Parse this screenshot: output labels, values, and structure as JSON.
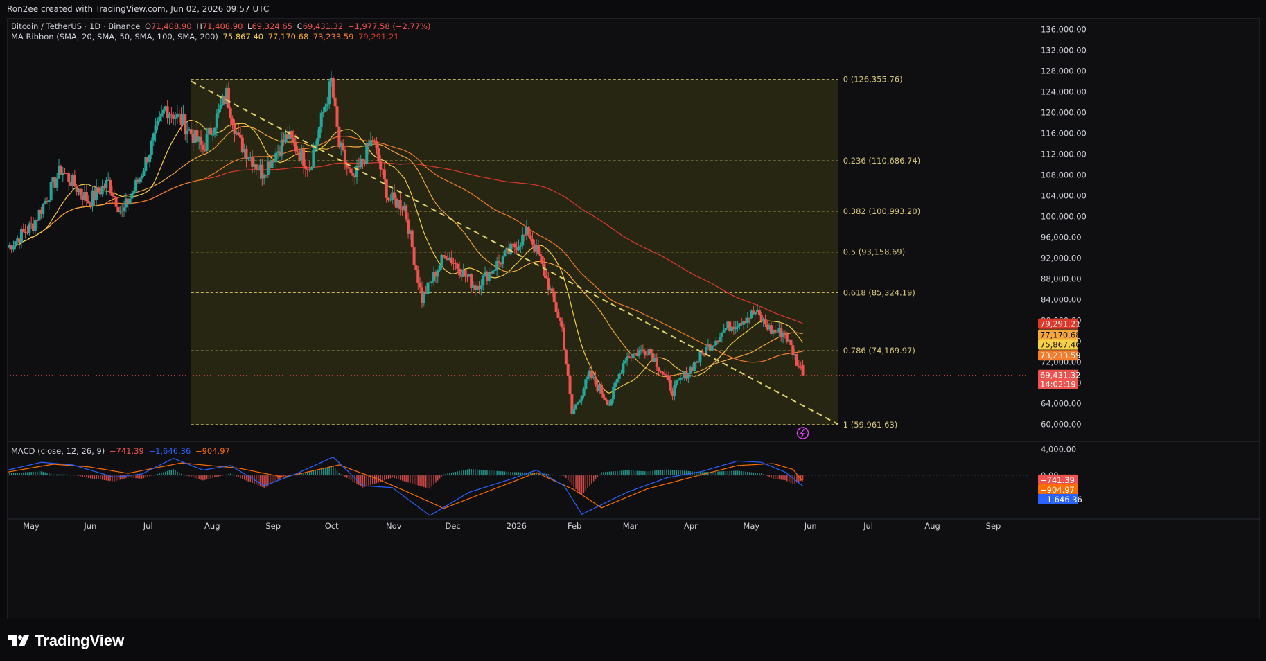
{
  "header": {
    "text": "Ron2ee created with TradingView.com, Jun 02, 2026 09:57 UTC"
  },
  "legend": {
    "symbol": "Bitcoin / TetherUS · 1D · Binance",
    "o_label": "O",
    "o_value": "71,408.90",
    "h_label": "H",
    "h_value": "71,408.90",
    "l_label": "L",
    "l_value": "69,324.65",
    "c_label": "C",
    "c_value": "69,431.32",
    "change": "−1,977.58 (−2.77%)",
    "ma_title": "MA Ribbon (SMA, 20, SMA, 50, SMA, 100, SMA, 200)",
    "ma_values": [
      "75,867.40",
      "77,170.68",
      "73,233.59",
      "79,291.21"
    ],
    "macd_title": "MACD (close, 12, 26, 9)",
    "macd_values": [
      "−741.39",
      "−1,646.36",
      "−904.97"
    ]
  },
  "brand": {
    "name": "TradingView",
    "icon": "tradingview-logo-icon"
  },
  "colors": {
    "up": "#26a69a",
    "down": "#ef5350",
    "fib": "#e2d66a",
    "fib_fill": "#2a2a14",
    "sma20": "#f7d046",
    "sma50": "#f6a73c",
    "sma100": "#f57c2c",
    "sma200": "#e0392c",
    "macd": "#2962ff",
    "signal": "#ff6d00"
  },
  "chart_data": {
    "type": "candlestick",
    "symbol": "BTCUSDT",
    "interval": "1D",
    "exchange": "Binance",
    "y_axis": {
      "ylim": [
        57000,
        137500
      ],
      "ticks": [
        "136,000.00",
        "132,000.00",
        "128,000.00",
        "124,000.00",
        "120,000.00",
        "116,000.00",
        "112,000.00",
        "108,000.00",
        "104,000.00",
        "100,000.00",
        "96,000.00",
        "92,000.00",
        "88,000.00",
        "84,000.00",
        "80,000.00",
        "76,000.00",
        "72,000.00",
        "68,000.00",
        "64,000.00",
        "60,000.00"
      ]
    },
    "x_axis": {
      "labels": [
        "May",
        "Jun",
        "Jul",
        "Aug",
        "Sep",
        "Oct",
        "Nov",
        "Dec",
        "2026",
        "Feb",
        "Mar",
        "Apr",
        "May",
        "Jun",
        "Jul",
        "Aug",
        "Sep"
      ],
      "label_dates": [
        "2025-05-01",
        "2025-06-01",
        "2025-07-01",
        "2025-08-01",
        "2025-09-01",
        "2025-10-01",
        "2025-11-01",
        "2025-12-01",
        "2026-01-01",
        "2026-02-01",
        "2026-03-01",
        "2026-04-01",
        "2026-05-01",
        "2026-06-01",
        "2026-07-01",
        "2026-08-01",
        "2026-09-01"
      ],
      "range": [
        "2025-04-25",
        "2026-09-25"
      ]
    },
    "price_path": [
      [
        "2025-04-25",
        94000
      ],
      [
        "2025-05-08",
        98500
      ],
      [
        "2025-05-22",
        109000
      ],
      [
        "2025-06-05",
        103000
      ],
      [
        "2025-06-15",
        106500
      ],
      [
        "2025-06-22",
        100500
      ],
      [
        "2025-07-01",
        107500
      ],
      [
        "2025-07-14",
        121000
      ],
      [
        "2025-07-22",
        118500
      ],
      [
        "2025-08-02",
        113000
      ],
      [
        "2025-08-14",
        123500
      ],
      [
        "2025-08-20",
        114500
      ],
      [
        "2025-09-01",
        108500
      ],
      [
        "2025-09-14",
        115500
      ],
      [
        "2025-09-25",
        109500
      ],
      [
        "2025-10-06",
        126000
      ],
      [
        "2025-10-10",
        113500
      ],
      [
        "2025-10-17",
        106500
      ],
      [
        "2025-10-27",
        115000
      ],
      [
        "2025-11-04",
        103500
      ],
      [
        "2025-11-12",
        102000
      ],
      [
        "2025-11-21",
        84000
      ],
      [
        "2025-12-03",
        93000
      ],
      [
        "2025-12-18",
        86500
      ],
      [
        "2026-01-05",
        93500
      ],
      [
        "2026-01-14",
        97000
      ],
      [
        "2026-01-20",
        91500
      ],
      [
        "2026-01-31",
        78500
      ],
      [
        "2026-02-05",
        62000
      ],
      [
        "2026-02-14",
        69500
      ],
      [
        "2026-02-24",
        64000
      ],
      [
        "2026-03-04",
        73000
      ],
      [
        "2026-03-16",
        74500
      ],
      [
        "2026-03-28",
        66500
      ],
      [
        "2026-04-14",
        74500
      ],
      [
        "2026-04-24",
        78500
      ],
      [
        "2026-05-09",
        81500
      ],
      [
        "2026-05-17",
        78000
      ],
      [
        "2026-05-24",
        77500
      ],
      [
        "2026-06-02",
        69431
      ]
    ],
    "last_candle": {
      "date": "2026-06-02",
      "open": 71408.9,
      "high": 71408.9,
      "low": 69324.65,
      "close": 69431.32,
      "change": -1977.58,
      "change_pct": -2.77
    },
    "moving_averages": [
      {
        "name": "SMA 20",
        "value": 75867.4
      },
      {
        "name": "SMA 50",
        "value": 77170.68
      },
      {
        "name": "SMA 100",
        "value": 73233.59
      },
      {
        "name": "SMA 200",
        "value": 79291.21
      }
    ],
    "fibonacci": {
      "start": "2025-07-27",
      "end": "2026-06-20",
      "levels": [
        {
          "ratio": "0",
          "price": 126355.76,
          "label": "0 (126,355.76)"
        },
        {
          "ratio": "0.236",
          "price": 110686.74,
          "label": "0.236 (110,686.74)"
        },
        {
          "ratio": "0.382",
          "price": 100993.2,
          "label": "0.382 (100,993.20)"
        },
        {
          "ratio": "0.5",
          "price": 93158.69,
          "label": "0.5 (93,158.69)"
        },
        {
          "ratio": "0.618",
          "price": 85324.19,
          "label": "0.618 (85,324.19)"
        },
        {
          "ratio": "0.786",
          "price": 74169.97,
          "label": "0.786 (74,169.97)"
        },
        {
          "ratio": "1",
          "price": 59961.63,
          "label": "1 (59,961.63)"
        }
      ]
    },
    "trendline": {
      "from": [
        "2025-07-27",
        126000
      ],
      "to": [
        "2026-06-20",
        60000
      ]
    },
    "price_badges": [
      {
        "text": "79,291.21",
        "value": 79291.21,
        "color": "#e0392c"
      },
      {
        "text": "77,170.68",
        "value": 77170.68,
        "color": "#f6a73c"
      },
      {
        "text": "75,867.40",
        "value": 75867.4,
        "color": "#f7d046"
      },
      {
        "text": "73,233.59",
        "value": 73233.59,
        "color": "#f57c2c"
      },
      {
        "text": "69,431.32",
        "sub": "14:02:19",
        "value": 69431.32,
        "color": "#ef5350"
      }
    ],
    "macd": {
      "ylim": [
        -6500,
        5000
      ],
      "tick_labels": [
        "4,000.00",
        "0.00"
      ],
      "tick_values": [
        4000,
        0
      ],
      "macd_path": [
        [
          "2025-04-25",
          800
        ],
        [
          "2025-05-12",
          2000
        ],
        [
          "2025-05-28",
          1600
        ],
        [
          "2025-06-18",
          -300
        ],
        [
          "2025-07-02",
          200
        ],
        [
          "2025-07-18",
          2600
        ],
        [
          "2025-08-02",
          800
        ],
        [
          "2025-08-16",
          1500
        ],
        [
          "2025-09-02",
          -1600
        ],
        [
          "2025-09-18",
          200
        ],
        [
          "2025-10-07",
          2800
        ],
        [
          "2025-10-22",
          -1600
        ],
        [
          "2025-11-06",
          -1900
        ],
        [
          "2025-11-25",
          -6200
        ],
        [
          "2025-12-15",
          -2600
        ],
        [
          "2026-01-06",
          -500
        ],
        [
          "2026-01-18",
          800
        ],
        [
          "2026-02-01",
          -1600
        ],
        [
          "2026-02-10",
          -6000
        ],
        [
          "2026-03-05",
          -2600
        ],
        [
          "2026-03-25",
          -400
        ],
        [
          "2026-04-12",
          600
        ],
        [
          "2026-04-30",
          2200
        ],
        [
          "2026-05-12",
          2000
        ],
        [
          "2026-05-24",
          500
        ],
        [
          "2026-06-02",
          -1646.36
        ]
      ],
      "signal_path": [
        [
          "2025-04-25",
          500
        ],
        [
          "2025-05-18",
          1700
        ],
        [
          "2025-06-05",
          1300
        ],
        [
          "2025-06-25",
          300
        ],
        [
          "2025-07-22",
          1900
        ],
        [
          "2025-08-20",
          1100
        ],
        [
          "2025-09-12",
          -300
        ],
        [
          "2025-10-10",
          1600
        ],
        [
          "2025-10-28",
          -400
        ],
        [
          "2025-11-14",
          -2600
        ],
        [
          "2025-12-02",
          -5100
        ],
        [
          "2025-12-25",
          -2400
        ],
        [
          "2026-01-18",
          400
        ],
        [
          "2026-02-06",
          -2200
        ],
        [
          "2026-02-20",
          -5000
        ],
        [
          "2026-03-15",
          -2100
        ],
        [
          "2026-04-08",
          -200
        ],
        [
          "2026-04-30",
          1500
        ],
        [
          "2026-05-18",
          1800
        ],
        [
          "2026-05-28",
          900
        ],
        [
          "2026-06-02",
          -904.97
        ]
      ],
      "badges": [
        {
          "text": "−741.39",
          "value": -741.39,
          "color": "#ef5350"
        },
        {
          "text": "−904.97",
          "value": -904.97,
          "color": "#ff6d00"
        },
        {
          "text": "−1,646.36",
          "value": -1646.36,
          "color": "#2962ff"
        }
      ]
    }
  }
}
